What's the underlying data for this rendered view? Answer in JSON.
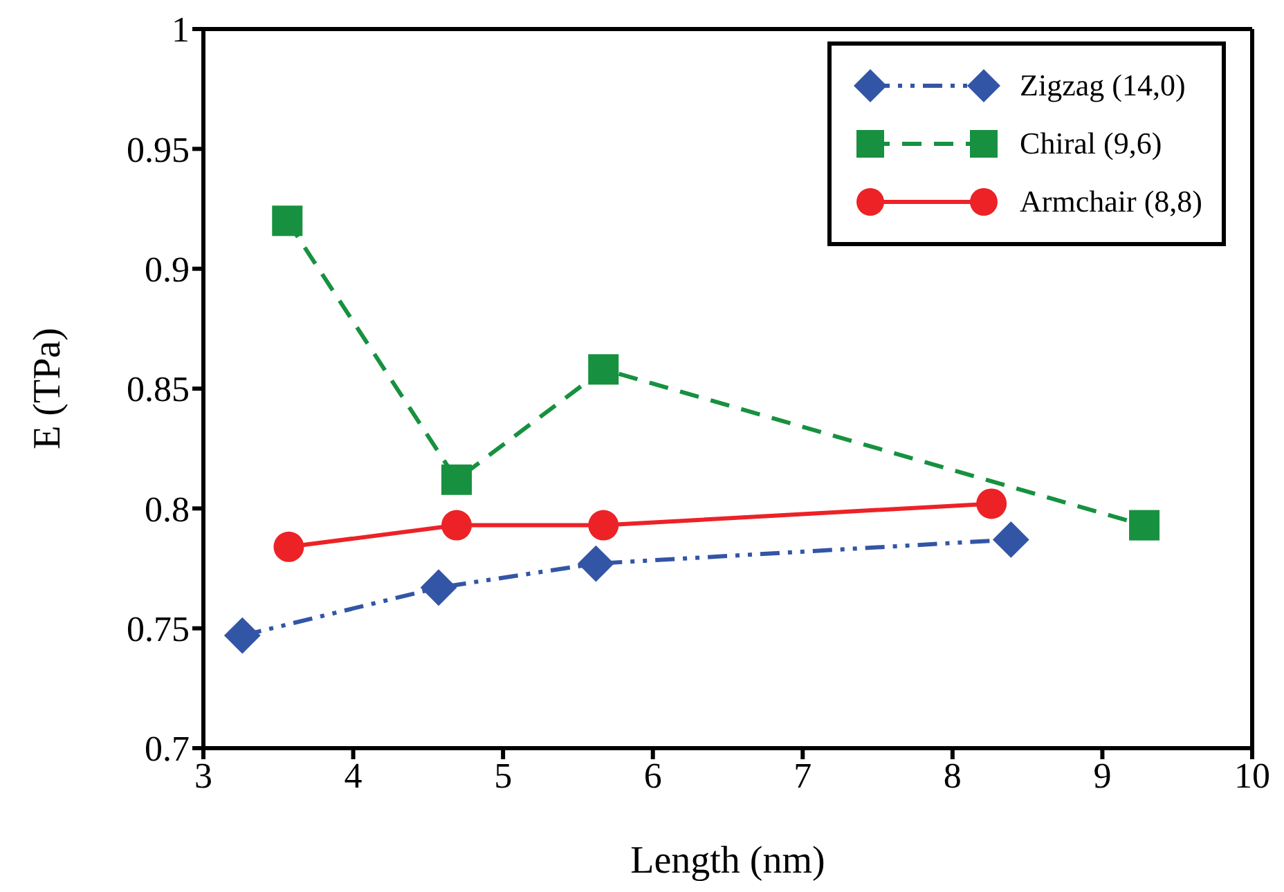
{
  "chart_data": {
    "type": "line",
    "xlabel": "Length (nm)",
    "ylabel": "E (TPa)",
    "xlim": [
      3,
      10
    ],
    "xticks": [
      3,
      4,
      5,
      6,
      7,
      8,
      9,
      10
    ],
    "ylim": [
      0.7,
      1
    ],
    "yticks": [
      0.7,
      0.75,
      0.8,
      0.85,
      0.9,
      0.95,
      1
    ],
    "legend": "top right",
    "series": [
      {
        "name": "Zigzag (14,0)",
        "color": "#3355a5",
        "marker": "diamond",
        "line_style": "dashdot",
        "x": [
          3.26,
          4.57,
          5.62,
          8.39
        ],
        "values": [
          0.747,
          0.767,
          0.777,
          0.787
        ]
      },
      {
        "name": "Chiral (9,6)",
        "color": "#17913f",
        "marker": "square",
        "line_style": "dashed",
        "x": [
          3.56,
          4.69,
          5.67,
          9.28
        ],
        "values": [
          0.92,
          0.812,
          0.858,
          0.793
        ]
      },
      {
        "name": "Armchair (8,8)",
        "color": "#ec2227",
        "marker": "circle",
        "line_style": "solid",
        "x": [
          3.57,
          4.69,
          5.67,
          8.26
        ],
        "values": [
          0.784,
          0.793,
          0.793,
          0.802
        ]
      }
    ]
  }
}
